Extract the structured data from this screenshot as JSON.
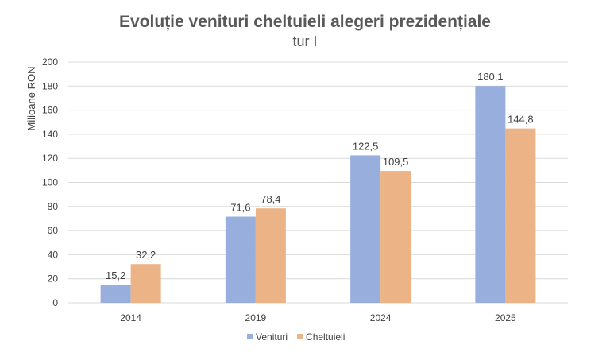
{
  "chart_data": {
    "type": "bar",
    "title": "Evoluție venituri cheltuieli alegeri prezidențiale",
    "subtitle": "tur I",
    "xlabel": "",
    "ylabel": "Milioane RON",
    "categories": [
      "2014",
      "2019",
      "2024",
      "2025"
    ],
    "series": [
      {
        "name": "Venituri",
        "values": [
          15.2,
          71.6,
          122.5,
          180.1
        ],
        "labels": [
          "15,2",
          "71,6",
          "122,5",
          "180,1"
        ],
        "color": "#98aedc"
      },
      {
        "name": "Cheltuieli",
        "values": [
          32.2,
          78.4,
          109.5,
          144.8
        ],
        "labels": [
          "32,2",
          "78,4",
          "109,5",
          "144,8"
        ],
        "color": "#ebb386"
      }
    ],
    "ylim": [
      0,
      200
    ],
    "yticks": [
      "0",
      "20",
      "40",
      "60",
      "80",
      "100",
      "120",
      "140",
      "160",
      "180",
      "200"
    ],
    "grid": true,
    "legend_position": "bottom"
  }
}
